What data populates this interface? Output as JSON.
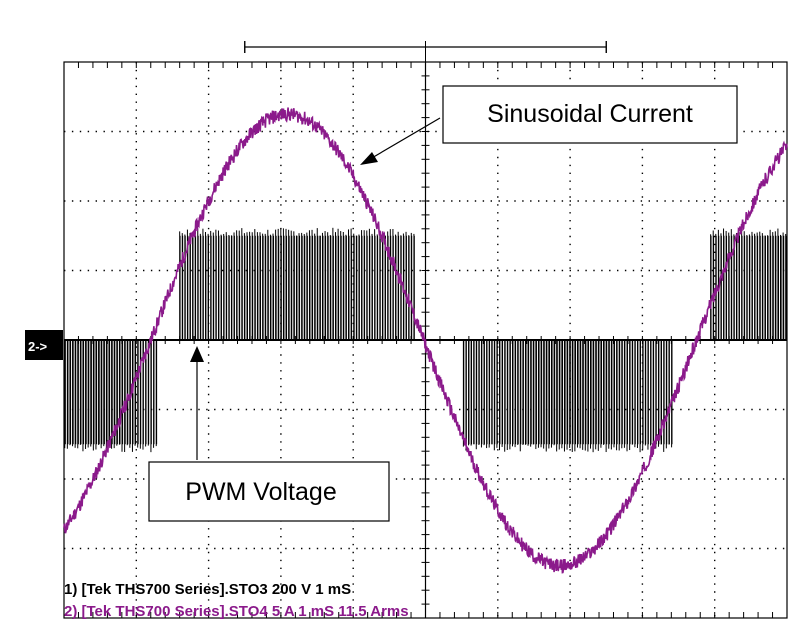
{
  "chart_data": {
    "type": "line",
    "title": "",
    "xlabel": "",
    "ylabel": "",
    "grid": true,
    "divisions": {
      "x": 10,
      "y": 8
    },
    "xlim_div": [
      0,
      10
    ],
    "ylim_div": [
      -4,
      4
    ],
    "series": [
      {
        "channel": 1,
        "kind": "pwm",
        "color": "#000000",
        "amplitude_div": 1.5,
        "switching_period_div": 0.036,
        "x_div": [
          0.0,
          0.5,
          1.0,
          1.5,
          2.0,
          2.5,
          3.0,
          3.5,
          4.0,
          4.5,
          5.0,
          5.5,
          6.0,
          6.5,
          7.0,
          7.5,
          8.0,
          8.5,
          9.0,
          9.5,
          10.0
        ],
        "duty": [
          -0.85,
          -0.9,
          -0.8,
          0.15,
          0.55,
          0.75,
          0.8,
          0.8,
          0.75,
          0.55,
          0.1,
          -0.2,
          -0.7,
          -0.85,
          -0.9,
          -0.85,
          -0.65,
          -0.15,
          0.3,
          0.7,
          0.9
        ]
      },
      {
        "channel": 2,
        "kind": "sine",
        "color": "#8b1a8b",
        "amplitude_div": 3.25,
        "period_div": 7.55,
        "zero_cross_div": 1.2,
        "ripple_div": 0.1
      }
    ],
    "annotations": [
      {
        "label": "Sinusoidal Current"
      },
      {
        "label": "PWM Voltage"
      }
    ]
  },
  "scope": {
    "ground_marker": "2->",
    "readouts": [
      {
        "text": "1) [Tek THS700 Series].STO3  200  V   1 mS",
        "color": "#000000"
      },
      {
        "text": "2) [Tek THS700 Series].STO4  5  A   1 mS 11.5 Arms",
        "color": "#8b1a8b"
      }
    ]
  }
}
